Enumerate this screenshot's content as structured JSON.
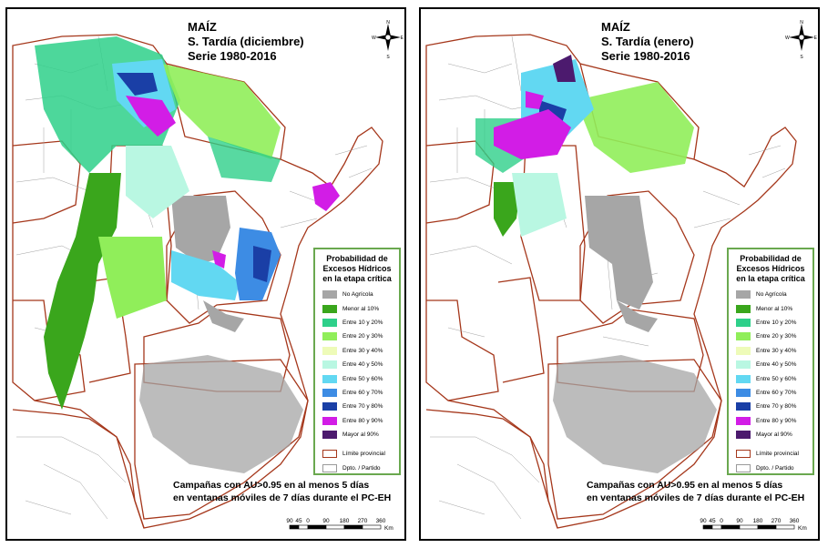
{
  "panels": [
    {
      "id": "left",
      "title_lines": [
        "MAÍZ",
        "S. Tardía (diciembre)",
        "Serie 1980-2016"
      ]
    },
    {
      "id": "right",
      "title_lines": [
        "MAÍZ",
        "S. Tardía (enero)",
        "Serie 1980-2016"
      ]
    }
  ],
  "north_arrow": {
    "n": "N",
    "s": "S",
    "e": "E",
    "w": "W"
  },
  "legend": {
    "title_lines": [
      "Probabilidad de",
      "Excesos Hídricos",
      "en la etapa crítica"
    ],
    "items": [
      {
        "label": "No Agrícola",
        "color": "#a6a6a6"
      },
      {
        "label": "Menor al 10%",
        "color": "#3aa61c"
      },
      {
        "label": "Entre 10 y 20%",
        "color": "#2ed08a"
      },
      {
        "label": "Entre 20 y 30%",
        "color": "#90ee5a"
      },
      {
        "label": "Entre 30 y 40%",
        "color": "#eefbb8"
      },
      {
        "label": "Entre 40 y 50%",
        "color": "#b9f7e2"
      },
      {
        "label": "Entre 50 y 60%",
        "color": "#62d8f2"
      },
      {
        "label": "Entre 60 y 70%",
        "color": "#3d8ce4"
      },
      {
        "label": "Entre 70 y 80%",
        "color": "#1a3fa6"
      },
      {
        "label": "Entre 80 y 90%",
        "color": "#d21de6"
      },
      {
        "label": "Mayor al 90%",
        "color": "#4c1a6e"
      }
    ],
    "boundaries": [
      {
        "label": "Límite provincial",
        "color": "#a5371b"
      },
      {
        "label": "Dpto. / Partido",
        "color": "#9a9a9a"
      }
    ]
  },
  "caption_lines": [
    "Campañas con AU>0.95 en al menos 5 días",
    "en ventanas móviles de 7 días durante el PC-EH"
  ],
  "scale": {
    "ticks": [
      "90",
      "45",
      "0",
      "90",
      "180",
      "270",
      "360"
    ],
    "unit": "Km"
  }
}
